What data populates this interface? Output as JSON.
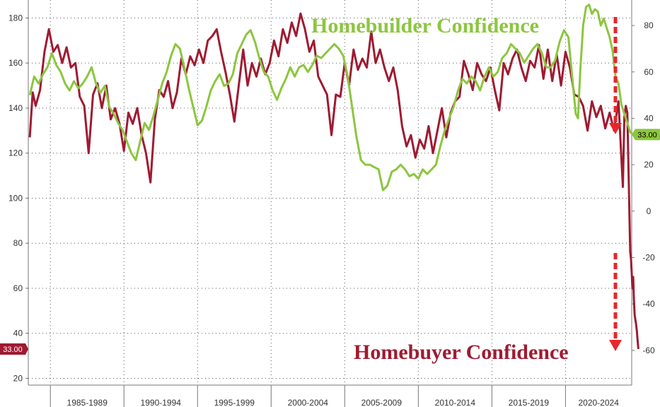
{
  "chart_data": {
    "type": "line",
    "x_range": [
      1983.5,
      2024.5
    ],
    "categories": [
      "1985-1989",
      "1990-1994",
      "1995-1999",
      "2000-2004",
      "2005-2009",
      "2010-2014",
      "2015-2019",
      "2020-2024"
    ],
    "category_boundaries": [
      1985,
      1990,
      1995,
      2000,
      2005,
      2010,
      2015,
      2020,
      2025
    ],
    "y_left": {
      "ticks": [
        20,
        40,
        60,
        80,
        100,
        120,
        140,
        160,
        180
      ],
      "range": [
        17,
        188
      ]
    },
    "y_right": {
      "ticks": [
        -60,
        -40,
        -20,
        0,
        20,
        40,
        60,
        80
      ],
      "range": [
        -75,
        91
      ]
    },
    "grid": true,
    "annotations": [
      {
        "key": "builder",
        "text": "Homebuilder Confidence",
        "color": "#8cc63f"
      },
      {
        "key": "buyer",
        "text": "Homebuyer Confidence",
        "color": "#9e1b32"
      }
    ],
    "series": [
      {
        "key": "buyer",
        "color": "#9e1b32",
        "axis": "left",
        "last_value_label": "33.00",
        "points": [
          [
            1983.6,
            127
          ],
          [
            1983.8,
            147
          ],
          [
            1984.0,
            141
          ],
          [
            1984.3,
            148
          ],
          [
            1984.6,
            165
          ],
          [
            1984.9,
            175
          ],
          [
            1985.2,
            165
          ],
          [
            1985.5,
            168
          ],
          [
            1985.8,
            160
          ],
          [
            1986.1,
            167
          ],
          [
            1986.4,
            158
          ],
          [
            1986.7,
            160
          ],
          [
            1987.0,
            145
          ],
          [
            1987.3,
            141
          ],
          [
            1987.6,
            120
          ],
          [
            1987.9,
            146
          ],
          [
            1988.2,
            151
          ],
          [
            1988.5,
            140
          ],
          [
            1988.8,
            150
          ],
          [
            1989.1,
            135
          ],
          [
            1989.4,
            140
          ],
          [
            1989.7,
            133
          ],
          [
            1990.0,
            121
          ],
          [
            1990.3,
            138
          ],
          [
            1990.6,
            133
          ],
          [
            1990.9,
            140
          ],
          [
            1991.2,
            128
          ],
          [
            1991.5,
            120
          ],
          [
            1991.8,
            107
          ],
          [
            1992.1,
            135
          ],
          [
            1992.4,
            148
          ],
          [
            1992.7,
            145
          ],
          [
            1993.0,
            152
          ],
          [
            1993.3,
            140
          ],
          [
            1993.6,
            147
          ],
          [
            1993.9,
            162
          ],
          [
            1994.2,
            155
          ],
          [
            1994.5,
            163
          ],
          [
            1994.8,
            159
          ],
          [
            1995.1,
            166
          ],
          [
            1995.4,
            160
          ],
          [
            1995.7,
            170
          ],
          [
            1996.0,
            172
          ],
          [
            1996.3,
            175
          ],
          [
            1996.6,
            165
          ],
          [
            1996.9,
            156
          ],
          [
            1997.2,
            146
          ],
          [
            1997.5,
            134
          ],
          [
            1997.8,
            150
          ],
          [
            1998.1,
            166
          ],
          [
            1998.4,
            150
          ],
          [
            1998.7,
            160
          ],
          [
            1999.0,
            154
          ],
          [
            1999.3,
            162
          ],
          [
            1999.6,
            155
          ],
          [
            1999.9,
            160
          ],
          [
            2000.2,
            170
          ],
          [
            2000.5,
            163
          ],
          [
            2000.8,
            175
          ],
          [
            2001.1,
            169
          ],
          [
            2001.4,
            178
          ],
          [
            2001.7,
            172
          ],
          [
            2002.0,
            182
          ],
          [
            2002.3,
            175
          ],
          [
            2002.6,
            165
          ],
          [
            2002.9,
            170
          ],
          [
            2003.2,
            154
          ],
          [
            2003.5,
            150
          ],
          [
            2003.8,
            146
          ],
          [
            2004.1,
            128
          ],
          [
            2004.4,
            146
          ],
          [
            2004.7,
            145
          ],
          [
            2005.0,
            160
          ],
          [
            2005.3,
            150
          ],
          [
            2005.6,
            166
          ],
          [
            2005.9,
            157
          ],
          [
            2006.2,
            162
          ],
          [
            2006.5,
            158
          ],
          [
            2006.8,
            174
          ],
          [
            2007.1,
            160
          ],
          [
            2007.4,
            166
          ],
          [
            2007.7,
            158
          ],
          [
            2008.0,
            152
          ],
          [
            2008.3,
            158
          ],
          [
            2008.6,
            148
          ],
          [
            2008.9,
            132
          ],
          [
            2009.2,
            123
          ],
          [
            2009.5,
            128
          ],
          [
            2009.8,
            118
          ],
          [
            2010.1,
            126
          ],
          [
            2010.4,
            122
          ],
          [
            2010.7,
            132
          ],
          [
            2011.0,
            120
          ],
          [
            2011.3,
            130
          ],
          [
            2011.6,
            140
          ],
          [
            2011.9,
            127
          ],
          [
            2012.2,
            138
          ],
          [
            2012.5,
            143
          ],
          [
            2012.8,
            145
          ],
          [
            2013.1,
            161
          ],
          [
            2013.4,
            155
          ],
          [
            2013.7,
            148
          ],
          [
            2014.0,
            160
          ],
          [
            2014.3,
            155
          ],
          [
            2014.6,
            152
          ],
          [
            2014.9,
            158
          ],
          [
            2015.2,
            148
          ],
          [
            2015.5,
            139
          ],
          [
            2015.8,
            160
          ],
          [
            2016.1,
            155
          ],
          [
            2016.4,
            162
          ],
          [
            2016.7,
            166
          ],
          [
            2017.0,
            158
          ],
          [
            2017.3,
            152
          ],
          [
            2017.6,
            161
          ],
          [
            2017.9,
            158
          ],
          [
            2018.2,
            168
          ],
          [
            2018.5,
            153
          ],
          [
            2018.8,
            166
          ],
          [
            2019.1,
            152
          ],
          [
            2019.4,
            164
          ],
          [
            2019.7,
            150
          ],
          [
            2020.0,
            165
          ],
          [
            2020.3,
            158
          ],
          [
            2020.6,
            146
          ],
          [
            2020.9,
            145
          ],
          [
            2021.2,
            141
          ],
          [
            2021.5,
            130
          ],
          [
            2021.8,
            143
          ],
          [
            2022.1,
            136
          ],
          [
            2022.4,
            141
          ],
          [
            2022.7,
            131
          ],
          [
            2023.0,
            138
          ],
          [
            2023.3,
            130
          ],
          [
            2023.6,
            143
          ],
          [
            2023.9,
            105
          ],
          [
            2024.0,
            136
          ],
          [
            2024.1,
            141
          ],
          [
            2024.2,
            138
          ],
          [
            2024.3,
            108
          ],
          [
            2024.4,
            76
          ],
          [
            2024.45,
            73
          ],
          [
            2024.5,
            67
          ],
          [
            2024.55,
            60
          ],
          [
            2024.6,
            65
          ],
          [
            2024.65,
            55
          ],
          [
            2024.7,
            48
          ],
          [
            2024.75,
            46
          ],
          [
            2024.8,
            44
          ],
          [
            2024.85,
            41
          ],
          [
            2024.9,
            37
          ],
          [
            2024.95,
            33
          ]
        ]
      },
      {
        "key": "builder",
        "color": "#8cc63f",
        "axis": "right",
        "last_value_label": "33.00",
        "points": [
          [
            1983.6,
            50
          ],
          [
            1983.9,
            58
          ],
          [
            1984.2,
            55
          ],
          [
            1984.5,
            59
          ],
          [
            1984.8,
            62
          ],
          [
            1985.1,
            68
          ],
          [
            1985.4,
            63
          ],
          [
            1985.7,
            60
          ],
          [
            1986.0,
            55
          ],
          [
            1986.3,
            52
          ],
          [
            1986.6,
            56
          ],
          [
            1986.9,
            53
          ],
          [
            1987.2,
            55
          ],
          [
            1987.5,
            58
          ],
          [
            1987.8,
            62
          ],
          [
            1988.1,
            55
          ],
          [
            1988.4,
            51
          ],
          [
            1988.7,
            54
          ],
          [
            1989.0,
            45
          ],
          [
            1989.3,
            42
          ],
          [
            1989.6,
            38
          ],
          [
            1989.9,
            35
          ],
          [
            1990.2,
            30
          ],
          [
            1990.5,
            25
          ],
          [
            1990.8,
            22
          ],
          [
            1991.1,
            30
          ],
          [
            1991.4,
            38
          ],
          [
            1991.7,
            35
          ],
          [
            1992.0,
            41
          ],
          [
            1992.3,
            48
          ],
          [
            1992.6,
            55
          ],
          [
            1992.9,
            60
          ],
          [
            1993.2,
            67
          ],
          [
            1993.5,
            72
          ],
          [
            1993.8,
            70
          ],
          [
            1994.1,
            62
          ],
          [
            1994.4,
            53
          ],
          [
            1994.7,
            45
          ],
          [
            1995.0,
            37
          ],
          [
            1995.3,
            39
          ],
          [
            1995.6,
            45
          ],
          [
            1995.9,
            52
          ],
          [
            1996.2,
            56
          ],
          [
            1996.5,
            59
          ],
          [
            1996.8,
            54
          ],
          [
            1997.1,
            55
          ],
          [
            1997.4,
            59
          ],
          [
            1997.7,
            68
          ],
          [
            1998.0,
            72
          ],
          [
            1998.3,
            76
          ],
          [
            1998.6,
            78
          ],
          [
            1998.9,
            73
          ],
          [
            1999.2,
            66
          ],
          [
            1999.5,
            60
          ],
          [
            1999.8,
            58
          ],
          [
            2000.1,
            52
          ],
          [
            2000.4,
            48
          ],
          [
            2000.7,
            53
          ],
          [
            2001.0,
            57
          ],
          [
            2001.3,
            62
          ],
          [
            2001.6,
            58
          ],
          [
            2001.9,
            62
          ],
          [
            2002.2,
            63
          ],
          [
            2002.5,
            60
          ],
          [
            2002.8,
            63
          ],
          [
            2003.1,
            67
          ],
          [
            2003.4,
            66
          ],
          [
            2003.7,
            68
          ],
          [
            2004.0,
            70
          ],
          [
            2004.3,
            72
          ],
          [
            2004.6,
            70
          ],
          [
            2004.9,
            67
          ],
          [
            2005.2,
            58
          ],
          [
            2005.5,
            45
          ],
          [
            2005.8,
            32
          ],
          [
            2006.1,
            22
          ],
          [
            2006.4,
            20
          ],
          [
            2006.7,
            20
          ],
          [
            2007.0,
            19
          ],
          [
            2007.3,
            18
          ],
          [
            2007.6,
            9
          ],
          [
            2007.9,
            11
          ],
          [
            2008.2,
            17
          ],
          [
            2008.5,
            18
          ],
          [
            2008.8,
            20
          ],
          [
            2009.1,
            18
          ],
          [
            2009.4,
            15
          ],
          [
            2009.7,
            16
          ],
          [
            2010.0,
            14
          ],
          [
            2010.3,
            18
          ],
          [
            2010.6,
            16
          ],
          [
            2010.9,
            18
          ],
          [
            2011.2,
            20
          ],
          [
            2011.5,
            28
          ],
          [
            2011.8,
            35
          ],
          [
            2012.1,
            40
          ],
          [
            2012.4,
            45
          ],
          [
            2012.7,
            52
          ],
          [
            2013.0,
            57
          ],
          [
            2013.3,
            55
          ],
          [
            2013.6,
            58
          ],
          [
            2013.9,
            56
          ],
          [
            2014.2,
            52
          ],
          [
            2014.5,
            58
          ],
          [
            2014.8,
            62
          ],
          [
            2015.1,
            58
          ],
          [
            2015.4,
            60
          ],
          [
            2015.7,
            66
          ],
          [
            2016.0,
            68
          ],
          [
            2016.3,
            72
          ],
          [
            2016.6,
            70
          ],
          [
            2016.9,
            68
          ],
          [
            2017.2,
            64
          ],
          [
            2017.5,
            67
          ],
          [
            2017.8,
            70
          ],
          [
            2018.1,
            72
          ],
          [
            2018.4,
            68
          ],
          [
            2018.7,
            62
          ],
          [
            2019.0,
            62
          ],
          [
            2019.3,
            65
          ],
          [
            2019.6,
            73
          ],
          [
            2019.9,
            78
          ],
          [
            2020.2,
            75
          ],
          [
            2020.5,
            55
          ],
          [
            2020.7,
            42
          ],
          [
            2020.85,
            40
          ],
          [
            2021.0,
            60
          ],
          [
            2021.2,
            80
          ],
          [
            2021.4,
            88
          ],
          [
            2021.6,
            89
          ],
          [
            2021.8,
            85
          ],
          [
            2022.0,
            87
          ],
          [
            2022.2,
            86
          ],
          [
            2022.4,
            80
          ],
          [
            2022.6,
            83
          ],
          [
            2022.8,
            79
          ],
          [
            2023.0,
            75
          ],
          [
            2023.2,
            69
          ],
          [
            2023.4,
            58
          ],
          [
            2023.6,
            55
          ],
          [
            2023.8,
            46
          ],
          [
            2024.0,
            42
          ],
          [
            2024.2,
            38
          ],
          [
            2024.4,
            34
          ],
          [
            2024.6,
            33
          ]
        ]
      }
    ]
  }
}
